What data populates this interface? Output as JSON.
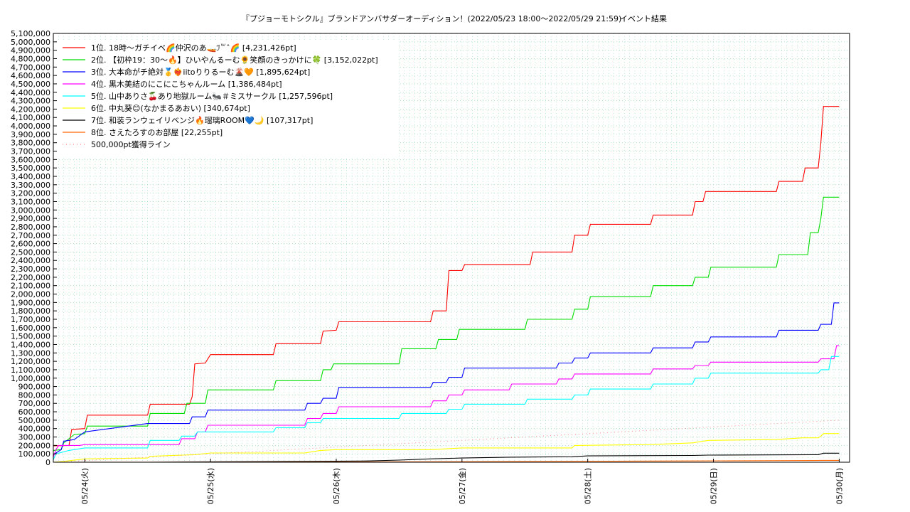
{
  "chart_data": {
    "type": "line",
    "title": "『プジョーモトシクル』ブランドアンバサダーオーディション！(2022/05/23 18:00〜2022/05/29 21:59)",
    "subtitle": "イベント結果",
    "ylim": [
      0,
      5100000
    ],
    "ytick_step": 100000,
    "xlim": [
      "2022-05-23 18:00",
      "2022-05-29 21:59"
    ],
    "xticks": [
      {
        "label": "05/24(火)",
        "t": 6
      },
      {
        "label": "05/25(水)",
        "t": 30
      },
      {
        "label": "05/26(木)",
        "t": 54
      },
      {
        "label": "05/27(金)",
        "t": 78
      },
      {
        "label": "05/28(土)",
        "t": 102
      },
      {
        "label": "05/29(日)",
        "t": 126
      },
      {
        "label": "05/30(月)",
        "t": 150
      }
    ],
    "grid": true,
    "legend_position": "top-left",
    "series": [
      {
        "name": "1位. 18時〜ガチイベ🌈仲沢のあ🚤ℐ꒳ˆ🌈 [4,231,426pt]",
        "color": "#ff0000",
        "points": [
          [
            0,
            195000
          ],
          [
            3,
            200000
          ],
          [
            3.5,
            390000
          ],
          [
            6,
            400000
          ],
          [
            6.5,
            560000
          ],
          [
            18,
            560000
          ],
          [
            18.5,
            690000
          ],
          [
            26,
            690000
          ],
          [
            26.5,
            780000
          ],
          [
            27,
            1170000
          ],
          [
            29,
            1180000
          ],
          [
            30,
            1280000
          ],
          [
            42,
            1280000
          ],
          [
            42.5,
            1410000
          ],
          [
            51,
            1410000
          ],
          [
            51.5,
            1560000
          ],
          [
            54,
            1570000
          ],
          [
            54.5,
            1670000
          ],
          [
            72,
            1670000
          ],
          [
            72.5,
            1800000
          ],
          [
            75,
            1800000
          ],
          [
            75.5,
            2280000
          ],
          [
            78,
            2280000
          ],
          [
            78.5,
            2350000
          ],
          [
            91,
            2350000
          ],
          [
            91.5,
            2500000
          ],
          [
            99,
            2500000
          ],
          [
            99.5,
            2700000
          ],
          [
            102,
            2700000
          ],
          [
            102.5,
            2830000
          ],
          [
            114,
            2830000
          ],
          [
            114.5,
            2940000
          ],
          [
            122,
            2940000
          ],
          [
            122.5,
            3100000
          ],
          [
            124,
            3100000
          ],
          [
            124.5,
            3220000
          ],
          [
            138,
            3220000
          ],
          [
            138.5,
            3340000
          ],
          [
            143,
            3340000
          ],
          [
            143.5,
            3500000
          ],
          [
            146,
            3500000
          ],
          [
            146.5,
            3800000
          ],
          [
            147,
            4231426
          ],
          [
            150,
            4231426
          ]
        ]
      },
      {
        "name": "2位. 【初枠19：30〜🔥】ひいやんるーむ🌻笑顔のきっかけに🍀 [3,152,022pt]",
        "color": "#00dd00",
        "points": [
          [
            0,
            140000
          ],
          [
            1.5,
            150000
          ],
          [
            2,
            230000
          ],
          [
            4,
            330000
          ],
          [
            6,
            340000
          ],
          [
            6.5,
            430000
          ],
          [
            18,
            430000
          ],
          [
            18.5,
            580000
          ],
          [
            25,
            580000
          ],
          [
            25.5,
            700000
          ],
          [
            29,
            700000
          ],
          [
            29.5,
            860000
          ],
          [
            42,
            860000
          ],
          [
            42.5,
            970000
          ],
          [
            51,
            970000
          ],
          [
            51.5,
            1100000
          ],
          [
            53,
            1100000
          ],
          [
            53.5,
            1170000
          ],
          [
            66,
            1170000
          ],
          [
            66.5,
            1350000
          ],
          [
            73,
            1350000
          ],
          [
            73.5,
            1460000
          ],
          [
            77,
            1460000
          ],
          [
            77.5,
            1580000
          ],
          [
            90,
            1580000
          ],
          [
            90.5,
            1700000
          ],
          [
            99,
            1700000
          ],
          [
            99.5,
            1820000
          ],
          [
            102,
            1820000
          ],
          [
            102.5,
            1970000
          ],
          [
            114,
            1970000
          ],
          [
            114.5,
            2100000
          ],
          [
            122,
            2100000
          ],
          [
            122.5,
            2200000
          ],
          [
            125,
            2200000
          ],
          [
            125.5,
            2320000
          ],
          [
            138,
            2320000
          ],
          [
            138.5,
            2470000
          ],
          [
            144,
            2470000
          ],
          [
            144.5,
            2730000
          ],
          [
            146,
            2730000
          ],
          [
            146.5,
            2900000
          ],
          [
            147,
            3152022
          ],
          [
            150,
            3152022
          ]
        ]
      },
      {
        "name": "3位. 大本命がチ絶対🥇❤️‍🔥iitoりりるーむ🌋🧡 [1,895,624pt]",
        "color": "#0000ff",
        "points": [
          [
            0,
            90000
          ],
          [
            1.5,
            150000
          ],
          [
            2,
            250000
          ],
          [
            4,
            270000
          ],
          [
            6,
            360000
          ],
          [
            18,
            460000
          ],
          [
            26,
            460000
          ],
          [
            26.5,
            540000
          ],
          [
            29,
            540000
          ],
          [
            29.5,
            620000
          ],
          [
            48,
            620000
          ],
          [
            48.5,
            700000
          ],
          [
            51,
            700000
          ],
          [
            51.5,
            760000
          ],
          [
            54,
            760000
          ],
          [
            54.5,
            890000
          ],
          [
            72,
            890000
          ],
          [
            72.5,
            950000
          ],
          [
            75,
            950000
          ],
          [
            75.5,
            1010000
          ],
          [
            78,
            1010000
          ],
          [
            78.5,
            1120000
          ],
          [
            96,
            1120000
          ],
          [
            96.5,
            1180000
          ],
          [
            99,
            1180000
          ],
          [
            99.5,
            1240000
          ],
          [
            102,
            1240000
          ],
          [
            102.5,
            1300000
          ],
          [
            114,
            1300000
          ],
          [
            114.5,
            1360000
          ],
          [
            122,
            1360000
          ],
          [
            122.5,
            1430000
          ],
          [
            125,
            1430000
          ],
          [
            125.5,
            1490000
          ],
          [
            138,
            1490000
          ],
          [
            138.5,
            1570000
          ],
          [
            146,
            1570000
          ],
          [
            146.5,
            1640000
          ],
          [
            148.5,
            1640000
          ],
          [
            149,
            1895624
          ],
          [
            150,
            1895624
          ]
        ]
      },
      {
        "name": "4位. 黒木美結のにこにこちゃんルーム [1,386,484pt]",
        "color": "#ff00ff",
        "points": [
          [
            0,
            60000
          ],
          [
            0.5,
            150000
          ],
          [
            1,
            200000
          ],
          [
            5,
            200000
          ],
          [
            6,
            210000
          ],
          [
            24,
            210000
          ],
          [
            24.5,
            280000
          ],
          [
            27,
            280000
          ],
          [
            27.5,
            360000
          ],
          [
            29,
            360000
          ],
          [
            29.5,
            440000
          ],
          [
            48,
            440000
          ],
          [
            48.5,
            520000
          ],
          [
            51,
            520000
          ],
          [
            51.5,
            580000
          ],
          [
            54,
            580000
          ],
          [
            54.5,
            660000
          ],
          [
            72,
            660000
          ],
          [
            72.5,
            730000
          ],
          [
            75,
            730000
          ],
          [
            75.5,
            800000
          ],
          [
            78,
            800000
          ],
          [
            78.5,
            860000
          ],
          [
            87,
            860000
          ],
          [
            87.5,
            930000
          ],
          [
            96,
            930000
          ],
          [
            96.5,
            990000
          ],
          [
            99,
            990000
          ],
          [
            99.5,
            1050000
          ],
          [
            114,
            1050000
          ],
          [
            114.5,
            1110000
          ],
          [
            122,
            1110000
          ],
          [
            122.5,
            1150000
          ],
          [
            125,
            1150000
          ],
          [
            125.5,
            1190000
          ],
          [
            146,
            1190000
          ],
          [
            146.5,
            1230000
          ],
          [
            149,
            1230000
          ],
          [
            149.5,
            1386484
          ],
          [
            150,
            1386484
          ]
        ]
      },
      {
        "name": "5位. 山中ありさ🍒あり地獄ルーム🐜＃ミスサークル [1,257,596pt]",
        "color": "#00ffff",
        "points": [
          [
            0,
            30000
          ],
          [
            0.5,
            100000
          ],
          [
            3,
            140000
          ],
          [
            6,
            170000
          ],
          [
            18,
            170000
          ],
          [
            18.5,
            260000
          ],
          [
            24,
            260000
          ],
          [
            24.5,
            310000
          ],
          [
            27,
            310000
          ],
          [
            27.5,
            360000
          ],
          [
            42,
            360000
          ],
          [
            42.5,
            410000
          ],
          [
            48,
            410000
          ],
          [
            48.5,
            470000
          ],
          [
            51,
            470000
          ],
          [
            51.5,
            520000
          ],
          [
            66,
            520000
          ],
          [
            66.5,
            580000
          ],
          [
            75,
            580000
          ],
          [
            75.5,
            630000
          ],
          [
            78,
            630000
          ],
          [
            78.5,
            690000
          ],
          [
            90,
            690000
          ],
          [
            90.5,
            750000
          ],
          [
            99,
            750000
          ],
          [
            99.5,
            800000
          ],
          [
            102,
            800000
          ],
          [
            102.5,
            870000
          ],
          [
            114,
            870000
          ],
          [
            114.5,
            930000
          ],
          [
            122,
            930000
          ],
          [
            122.5,
            1000000
          ],
          [
            125,
            1000000
          ],
          [
            125.5,
            1060000
          ],
          [
            146,
            1060000
          ],
          [
            146.5,
            1100000
          ],
          [
            148,
            1100000
          ],
          [
            148.5,
            1257596
          ],
          [
            150,
            1257596
          ]
        ]
      },
      {
        "name": "6位. 中丸葵😊(なかまるあおい) [340,674pt]",
        "color": "#ffff00",
        "points": [
          [
            0,
            0
          ],
          [
            2,
            10000
          ],
          [
            6,
            40000
          ],
          [
            18,
            50000
          ],
          [
            18.5,
            70000
          ],
          [
            27,
            90000
          ],
          [
            30,
            110000
          ],
          [
            42,
            110000
          ],
          [
            48,
            110000
          ],
          [
            51,
            140000
          ],
          [
            54,
            150000
          ],
          [
            72,
            150000
          ],
          [
            78,
            170000
          ],
          [
            99,
            170000
          ],
          [
            99.5,
            200000
          ],
          [
            114,
            210000
          ],
          [
            122,
            230000
          ],
          [
            125,
            260000
          ],
          [
            138,
            270000
          ],
          [
            143,
            290000
          ],
          [
            146,
            290000
          ],
          [
            146.5,
            310000
          ],
          [
            147,
            340674
          ],
          [
            150,
            340674
          ]
        ]
      },
      {
        "name": "7位. 和装ランウェイリベンジ🔥瑠璃ROOM💙🌙 [107,317pt]",
        "color": "#000000",
        "points": [
          [
            0,
            0
          ],
          [
            18,
            0
          ],
          [
            30,
            5000
          ],
          [
            48,
            10000
          ],
          [
            60,
            15000
          ],
          [
            66,
            25000
          ],
          [
            72,
            40000
          ],
          [
            75,
            45000
          ],
          [
            78,
            50000
          ],
          [
            87,
            60000
          ],
          [
            99,
            65000
          ],
          [
            102,
            75000
          ],
          [
            122,
            80000
          ],
          [
            125,
            85000
          ],
          [
            146,
            90000
          ],
          [
            147,
            107317
          ],
          [
            150,
            107317
          ]
        ]
      },
      {
        "name": "8位. さえたろすのお部屋 [22,255pt]",
        "color": "#ff6600",
        "points": [
          [
            0,
            0
          ],
          [
            30,
            1000
          ],
          [
            60,
            3000
          ],
          [
            90,
            8000
          ],
          [
            120,
            15000
          ],
          [
            145,
            20000
          ],
          [
            147,
            22255
          ],
          [
            150,
            22255
          ]
        ]
      },
      {
        "name": "500,000pt獲得ライン",
        "color": "#ff8888",
        "dashed": true,
        "points": [
          [
            0,
            0
          ],
          [
            150,
            500000
          ]
        ]
      }
    ]
  }
}
